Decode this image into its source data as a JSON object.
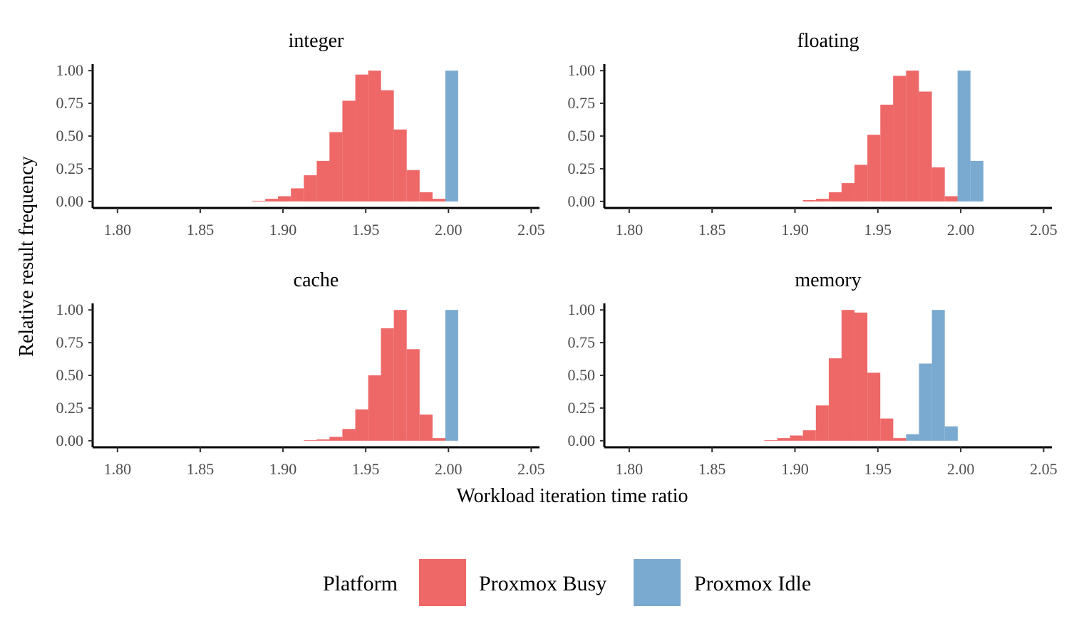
{
  "colors": {
    "busy": "#EE6868",
    "idle": "#7BAAD0",
    "axis": "#000000",
    "tick_text": "#4d4d4d"
  },
  "chart_data": {
    "type": "bar",
    "subtype": "faceted histogram",
    "ylabel": "Relative result frequency",
    "xlabel": "Workload iteration time ratio",
    "xlim": [
      1.785,
      2.055
    ],
    "ylim": [
      -0.05,
      1.05
    ],
    "xticks": [
      "1.80",
      "1.85",
      "1.90",
      "1.95",
      "2.00",
      "2.05"
    ],
    "yticks": [
      "0.00",
      "0.25",
      "0.50",
      "0.75",
      "1.00"
    ],
    "bin_width": 0.00778,
    "legend": {
      "title": "Platform",
      "position": "bottom",
      "entries": [
        {
          "name": "Proxmox Busy",
          "key": "busy"
        },
        {
          "name": "Proxmox Idle",
          "key": "idle"
        }
      ]
    },
    "panels": [
      {
        "title": "integer",
        "series": [
          {
            "name": "Proxmox Busy",
            "key": "busy",
            "x": [
              1.8815,
              1.8893,
              1.897,
              1.9048,
              1.9126,
              1.9204,
              1.9281,
              1.9359,
              1.9437,
              1.9515,
              1.9592,
              1.967,
              1.9748,
              1.9826,
              1.9904
            ],
            "values": [
              0.005,
              0.02,
              0.04,
              0.1,
              0.2,
              0.31,
              0.53,
              0.77,
              0.97,
              1.0,
              0.85,
              0.55,
              0.24,
              0.07,
              0.02
            ]
          },
          {
            "name": "Proxmox Idle",
            "key": "idle",
            "x": [
              1.9981
            ],
            "values": [
              1.0
            ]
          }
        ]
      },
      {
        "title": "floating",
        "series": [
          {
            "name": "Proxmox Busy",
            "key": "busy",
            "x": [
              1.9048,
              1.9126,
              1.9204,
              1.9281,
              1.9359,
              1.9437,
              1.9515,
              1.9592,
              1.967,
              1.9748,
              1.9826,
              1.9904
            ],
            "values": [
              0.01,
              0.02,
              0.07,
              0.14,
              0.28,
              0.51,
              0.74,
              0.96,
              1.0,
              0.84,
              0.26,
              0.04
            ]
          },
          {
            "name": "Proxmox Idle",
            "key": "idle",
            "x": [
              1.9981,
              2.0059
            ],
            "values": [
              1.0,
              0.31
            ]
          }
        ]
      },
      {
        "title": "cache",
        "series": [
          {
            "name": "Proxmox Busy",
            "key": "busy",
            "x": [
              1.9126,
              1.9204,
              1.9281,
              1.9359,
              1.9437,
              1.9515,
              1.9592,
              1.967,
              1.9748,
              1.9826,
              1.9904
            ],
            "values": [
              0.005,
              0.01,
              0.03,
              0.09,
              0.24,
              0.5,
              0.86,
              1.0,
              0.7,
              0.2,
              0.02
            ]
          },
          {
            "name": "Proxmox Idle",
            "key": "idle",
            "x": [
              1.9981
            ],
            "values": [
              1.0
            ]
          }
        ]
      },
      {
        "title": "memory",
        "series": [
          {
            "name": "Proxmox Busy",
            "key": "busy",
            "x": [
              1.8815,
              1.8893,
              1.897,
              1.9048,
              1.9126,
              1.9204,
              1.9281,
              1.9359,
              1.9437,
              1.9515,
              1.9592
            ],
            "values": [
              0.005,
              0.02,
              0.04,
              0.08,
              0.27,
              0.63,
              1.0,
              0.98,
              0.52,
              0.17,
              0.02
            ]
          },
          {
            "name": "Proxmox Idle",
            "key": "idle",
            "x": [
              1.967,
              1.9748,
              1.9826,
              1.9904
            ],
            "values": [
              0.05,
              0.59,
              1.0,
              0.11
            ]
          }
        ]
      }
    ]
  }
}
